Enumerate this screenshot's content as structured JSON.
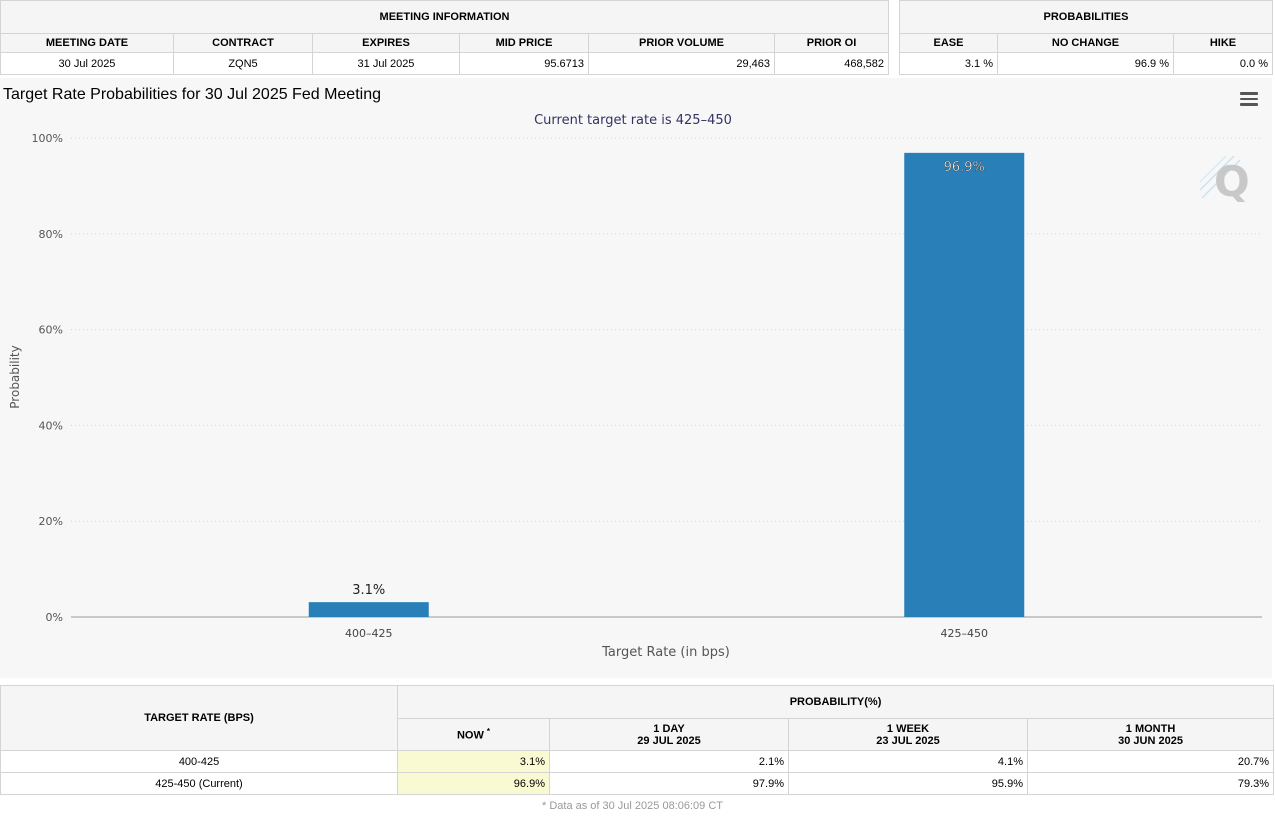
{
  "meeting_info": {
    "section_title": "MEETING INFORMATION",
    "headers": [
      "MEETING DATE",
      "CONTRACT",
      "EXPIRES",
      "MID PRICE",
      "PRIOR VOLUME",
      "PRIOR OI"
    ],
    "row": [
      "30 Jul 2025",
      "ZQN5",
      "31 Jul 2025",
      "95.6713",
      "29,463",
      "468,582"
    ]
  },
  "probabilities": {
    "section_title": "PROBABILITIES",
    "headers": [
      "EASE",
      "NO CHANGE",
      "HIKE"
    ],
    "row": [
      "3.1 %",
      "96.9 %",
      "0.0 %"
    ]
  },
  "chart_title": "Target Rate Probabilities for 30 Jul 2025 Fed Meeting",
  "chart_data": {
    "type": "bar",
    "subtitle": "Current target rate is 425–450",
    "categories": [
      "400–425",
      "425–450"
    ],
    "values": [
      3.1,
      96.9
    ],
    "data_labels": [
      "3.1%",
      "96.9%"
    ],
    "xlabel": "Target Rate (in bps)",
    "ylabel": "Probability",
    "ylim": [
      0,
      100
    ],
    "yticks": [
      "0%",
      "20%",
      "40%",
      "60%",
      "80%",
      "100%"
    ],
    "grid": true,
    "bar_color": "#2980b9",
    "watermark_icon": "q-logo-icon",
    "menu_icon": "hamburger-menu-icon"
  },
  "rate_table": {
    "target_header": "TARGET RATE (BPS)",
    "prob_header": "PROBABILITY(%)",
    "now_header": "NOW",
    "now_marker": "*",
    "col_headers": [
      {
        "label": "1 DAY",
        "date": "29 JUL 2025"
      },
      {
        "label": "1 WEEK",
        "date": "23 JUL 2025"
      },
      {
        "label": "1 MONTH",
        "date": "30 JUN 2025"
      }
    ],
    "rows": [
      {
        "rate": "400-425",
        "now": "3.1%",
        "day": "2.1%",
        "week": "4.1%",
        "month": "20.7%"
      },
      {
        "rate": "425-450 (Current)",
        "now": "96.9%",
        "day": "97.9%",
        "week": "95.9%",
        "month": "79.3%"
      }
    ],
    "footnote": "* Data as of 30 Jul 2025 08:06:09 CT"
  }
}
